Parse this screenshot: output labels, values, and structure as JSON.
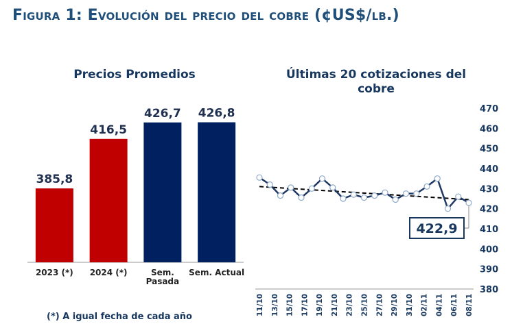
{
  "figure_title": "Figura 1: Evolución del precio del cobre (¢US$/lb.)",
  "footnote": "(*) A igual fecha de cada año",
  "colors": {
    "red": "#c00000",
    "navy": "#002060",
    "line": "#1f3864",
    "title": "#1f4e79"
  },
  "chart_data": [
    {
      "type": "bar",
      "title": "Precios Promedios",
      "categories": [
        "2023 (*)",
        "2024 (*)",
        "Sem. Pasada",
        "Sem. Actual"
      ],
      "category_lines": [
        [
          "2023 (*)"
        ],
        [
          "2024 (*)"
        ],
        [
          "Sem.",
          "Pasada"
        ],
        [
          "Sem. Actual"
        ]
      ],
      "values": [
        385.8,
        416.5,
        426.7,
        426.8
      ],
      "value_labels": [
        "385,8",
        "416,5",
        "426,7",
        "426,8"
      ],
      "bar_colors": [
        "#c00000",
        "#c00000",
        "#002060",
        "#002060"
      ],
      "ylim": [
        340,
        430
      ]
    },
    {
      "type": "line",
      "title": "Últimas 20 cotizaciones del cobre",
      "title_lines": [
        "Últimas 20 cotizaciones del",
        "cobre"
      ],
      "x": [
        "11/10",
        "14/10",
        "15/10",
        "16/10",
        "17/10",
        "18/10",
        "21/10",
        "22/10",
        "23/10",
        "24/10",
        "25/10",
        "28/10",
        "29/10",
        "30/10",
        "31/10",
        "01/11",
        "04/11",
        "05/11",
        "06/11",
        "07/11",
        "08/11"
      ],
      "x_tick_labels": [
        "11/10",
        "13/10",
        "15/10",
        "17/10",
        "19/10",
        "21/10",
        "23/10",
        "25/10",
        "27/10",
        "29/10",
        "31/10",
        "02/11",
        "04/11",
        "06/11",
        "08/11"
      ],
      "series": [
        {
          "values": [
            435.5,
            432.0,
            426.5,
            430.5,
            425.5,
            430.0,
            435.0,
            430.5,
            425.0,
            427.0,
            425.5,
            426.5,
            428.0,
            424.5,
            427.5,
            427.5,
            431.0,
            435.0,
            420.0,
            426.0,
            422.9
          ]
        }
      ],
      "trend": [
        431.0,
        424.5
      ],
      "callout": "422,9",
      "ylim": [
        380,
        470
      ],
      "yticks": [
        380,
        390,
        400,
        410,
        420,
        430,
        440,
        450,
        460,
        470
      ]
    }
  ]
}
